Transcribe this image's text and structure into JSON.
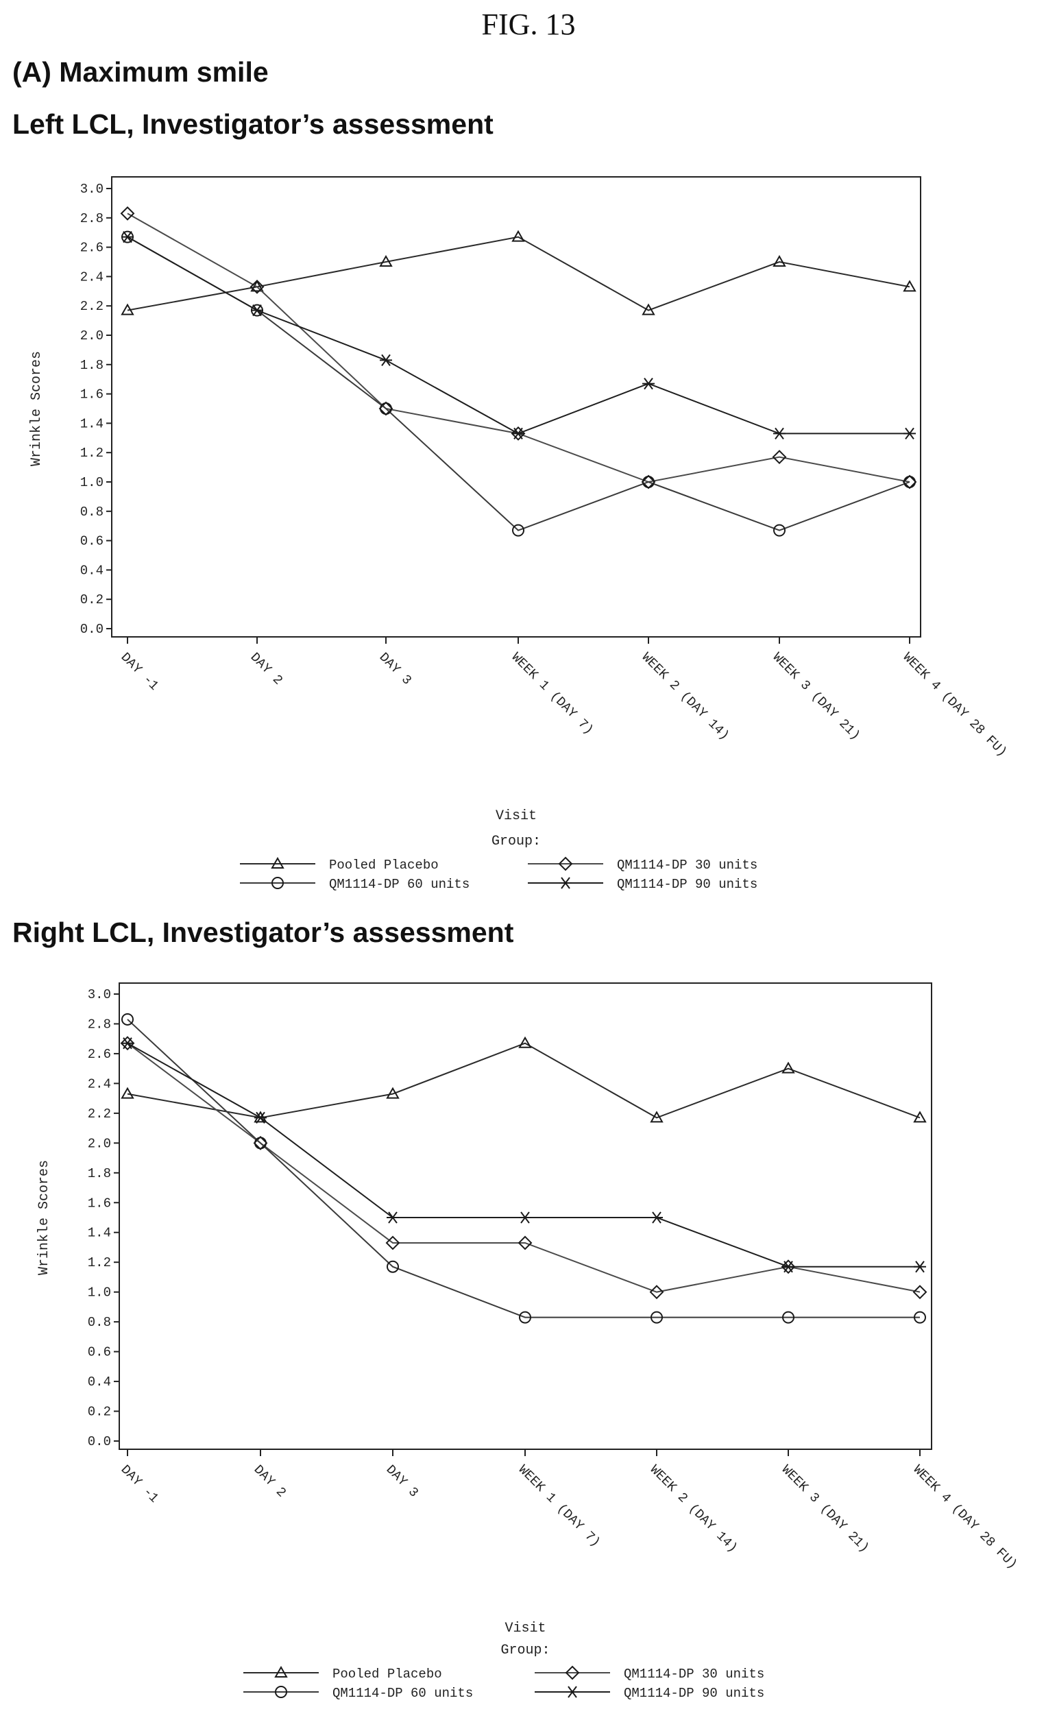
{
  "figure": {
    "label": "FIG. 13",
    "section_heading": "(A) Maximum smile"
  },
  "chart_data": [
    {
      "type": "line",
      "title": "Left LCL, Investigator’s assessment",
      "xlabel": "Visit",
      "ylabel": "Wrinkle Scores",
      "categories": [
        "DAY -1",
        "DAY 2",
        "DAY 3",
        "WEEK 1 (DAY 7)",
        "WEEK 2 (DAY 14)",
        "WEEK 3 (DAY 21)",
        "WEEK 4 (DAY 28 FU)"
      ],
      "ylim": [
        0,
        3.0
      ],
      "yticks": [
        "0.0",
        "0.2",
        "0.4",
        "0.6",
        "0.8",
        "1.0",
        "1.2",
        "1.4",
        "1.6",
        "1.8",
        "2.0",
        "2.2",
        "2.4",
        "2.6",
        "2.8",
        "3.0"
      ],
      "legend_title": "Group:",
      "legend_position": "bottom",
      "grid": false,
      "series": [
        {
          "name": "Pooled Placebo",
          "marker": "triangle",
          "values": [
            2.17,
            2.33,
            2.5,
            2.67,
            2.17,
            2.5,
            2.33
          ]
        },
        {
          "name": "QM1114-DP 30 units",
          "marker": "diamond",
          "values": [
            2.83,
            2.33,
            1.5,
            1.33,
            1.0,
            1.17,
            1.0
          ]
        },
        {
          "name": "QM1114-DP 60 units",
          "marker": "circle",
          "values": [
            2.67,
            2.17,
            1.5,
            0.67,
            1.0,
            0.67,
            1.0
          ]
        },
        {
          "name": "QM1114-DP 90 units",
          "marker": "star",
          "values": [
            2.67,
            2.17,
            1.83,
            1.33,
            1.67,
            1.33,
            1.33
          ]
        }
      ]
    },
    {
      "type": "line",
      "title": "Right LCL, Investigator’s assessment",
      "xlabel": "Visit",
      "ylabel": "Wrinkle Scores",
      "categories": [
        "DAY -1",
        "DAY 2",
        "DAY 3",
        "WEEK 1 (DAY 7)",
        "WEEK 2 (DAY 14)",
        "WEEK 3 (DAY 21)",
        "WEEK 4 (DAY 28 FU)"
      ],
      "ylim": [
        0,
        3.0
      ],
      "yticks": [
        "0.0",
        "0.2",
        "0.4",
        "0.6",
        "0.8",
        "1.0",
        "1.2",
        "1.4",
        "1.6",
        "1.8",
        "2.0",
        "2.2",
        "2.4",
        "2.6",
        "2.8",
        "3.0"
      ],
      "legend_title": "Group:",
      "legend_position": "bottom",
      "grid": false,
      "series": [
        {
          "name": "Pooled Placebo",
          "marker": "triangle",
          "values": [
            2.33,
            2.17,
            2.33,
            2.67,
            2.17,
            2.5,
            2.17
          ]
        },
        {
          "name": "QM1114-DP 30 units",
          "marker": "diamond",
          "values": [
            2.67,
            2.0,
            1.33,
            1.33,
            1.0,
            1.17,
            1.0
          ]
        },
        {
          "name": "QM1114-DP 60 units",
          "marker": "circle",
          "values": [
            2.83,
            2.0,
            1.17,
            0.83,
            0.83,
            0.83,
            0.83
          ]
        },
        {
          "name": "QM1114-DP 90 units",
          "marker": "star",
          "values": [
            2.67,
            2.17,
            1.5,
            1.5,
            1.5,
            1.17,
            1.17
          ]
        }
      ]
    }
  ]
}
